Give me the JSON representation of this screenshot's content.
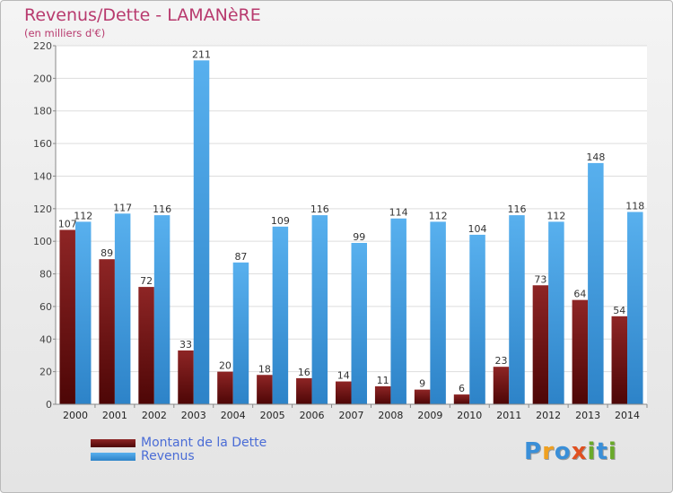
{
  "title": "Revenus/Dette - LAMANèRE",
  "subtitle": "(en milliers d'€)",
  "logo": {
    "letters": [
      "P",
      "r",
      "o",
      "x",
      "i",
      "t",
      "i"
    ],
    "colors": [
      "#3a8fd8",
      "#f0a020",
      "#3a8fd8",
      "#e05020",
      "#6aaa2a",
      "#3a8fd8",
      "#6aaa2a"
    ]
  },
  "colors": {
    "dette": "#7e1a1a",
    "revenus": "#4aa3e6",
    "title": "#b83a6e",
    "legend_text": "#4a6cd6"
  },
  "chart_data": {
    "type": "bar",
    "categories": [
      "2000",
      "2001",
      "2002",
      "2003",
      "2004",
      "2005",
      "2006",
      "2007",
      "2008",
      "2009",
      "2010",
      "2011",
      "2012",
      "2013",
      "2014"
    ],
    "series": [
      {
        "name": "Montant de la Dette",
        "values": [
          107,
          89,
          72,
          33,
          20,
          18,
          16,
          14,
          11,
          9,
          6,
          23,
          73,
          64,
          54
        ]
      },
      {
        "name": "Revenus",
        "values": [
          112,
          117,
          116,
          211,
          87,
          109,
          116,
          99,
          114,
          112,
          104,
          116,
          112,
          148,
          118
        ]
      }
    ],
    "ylim": [
      0,
      220
    ],
    "yticks": [
      0,
      20,
      40,
      60,
      80,
      100,
      120,
      140,
      160,
      180,
      200,
      220
    ],
    "grid": true,
    "legend_position": "bottom-left"
  }
}
